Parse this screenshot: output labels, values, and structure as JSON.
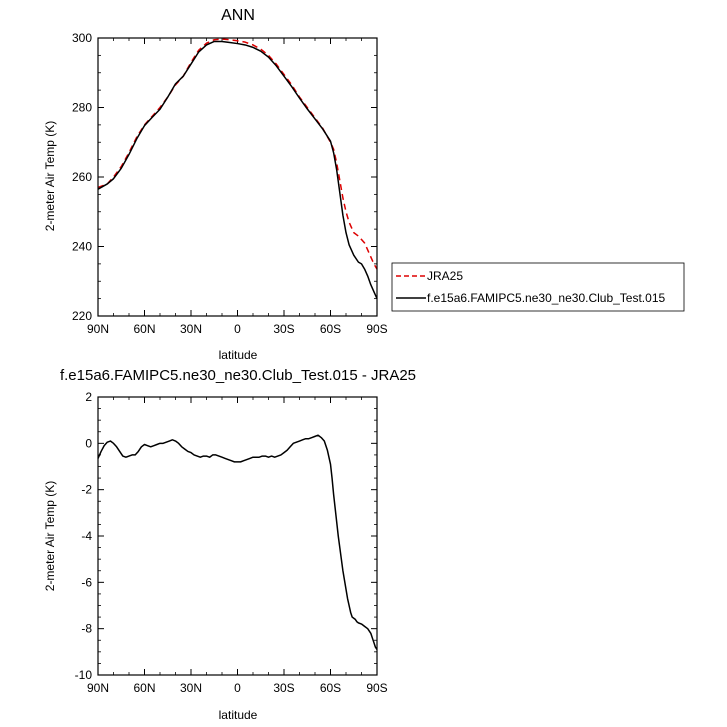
{
  "chart_data": [
    {
      "type": "line",
      "title": "ANN",
      "xlabel": "latitude",
      "ylabel": "2-meter Air Temp (K)",
      "xlim": [
        90,
        -90
      ],
      "ylim": [
        220,
        300
      ],
      "x_ticks": [
        90,
        60,
        30,
        0,
        -30,
        -60,
        -90
      ],
      "x_tick_labels": [
        "90N",
        "60N",
        "30N",
        "0",
        "30S",
        "60S",
        "90S"
      ],
      "y_ticks": [
        220,
        240,
        260,
        280,
        300
      ],
      "y_tick_labels": [
        "220",
        "240",
        "260",
        "280",
        "300"
      ],
      "grid": false,
      "legend_position": "right",
      "series": [
        {
          "name": "JRA25",
          "color": "#dd0000",
          "dash": "dashed",
          "x": [
            90,
            84,
            80,
            75,
            70,
            65,
            60,
            55,
            50,
            45,
            40,
            35,
            30,
            25,
            20,
            15,
            10,
            5,
            0,
            -5,
            -10,
            -15,
            -20,
            -25,
            -30,
            -35,
            -40,
            -45,
            -50,
            -55,
            -60,
            -62,
            -64,
            -66,
            -68,
            -70,
            -72,
            -75,
            -78,
            -80,
            -82,
            -84,
            -86,
            -88,
            -90
          ],
          "values": [
            257.0,
            258.0,
            260.0,
            263.0,
            267.0,
            271.5,
            275.0,
            277.5,
            280.0,
            283.0,
            286.5,
            289.0,
            293.0,
            296.5,
            298.5,
            299.5,
            299.7,
            299.5,
            299.2,
            298.8,
            298.0,
            296.8,
            295.0,
            292.5,
            289.5,
            286.5,
            283.0,
            280.0,
            277.0,
            274.0,
            270.0,
            268.0,
            264.0,
            259.0,
            254.0,
            250.0,
            247.0,
            244.0,
            243.0,
            242.0,
            241.0,
            239.0,
            237.0,
            235.0,
            233.5
          ]
        },
        {
          "name": "f.e15a6.FAMIPC5.ne30_ne30.Club_Test.015",
          "color": "#000000",
          "dash": "solid",
          "x": [
            90,
            84,
            80,
            75,
            70,
            65,
            60,
            55,
            50,
            45,
            40,
            35,
            30,
            25,
            20,
            15,
            10,
            5,
            0,
            -5,
            -10,
            -15,
            -20,
            -25,
            -30,
            -35,
            -40,
            -45,
            -50,
            -55,
            -60,
            -62,
            -64,
            -66,
            -68,
            -70,
            -72,
            -75,
            -78,
            -80,
            -82,
            -84,
            -86,
            -88,
            -90
          ],
          "values": [
            256.5,
            258.0,
            259.5,
            262.5,
            266.5,
            271.0,
            274.8,
            277.2,
            279.5,
            283.0,
            286.8,
            289.0,
            292.5,
            296.0,
            298.0,
            299.0,
            299.0,
            298.7,
            298.4,
            298.0,
            297.3,
            296.2,
            294.5,
            292.0,
            289.0,
            286.0,
            282.7,
            279.6,
            276.7,
            273.8,
            270.3,
            267.0,
            262.0,
            255.5,
            249.0,
            244.0,
            240.5,
            237.5,
            235.5,
            235.0,
            233.5,
            231.5,
            229.0,
            227.0,
            225.0
          ]
        }
      ]
    },
    {
      "type": "line",
      "title": "f.e15a6.FAMIPC5.ne30_ne30.Club_Test.015 - JRA25",
      "xlabel": "latitude",
      "ylabel": "2-meter Air Temp (K)",
      "xlim": [
        90,
        -90
      ],
      "ylim": [
        -10,
        2
      ],
      "x_ticks": [
        90,
        60,
        30,
        0,
        -30,
        -60,
        -90
      ],
      "x_tick_labels": [
        "90N",
        "60N",
        "30N",
        "0",
        "30S",
        "60S",
        "90S"
      ],
      "y_ticks": [
        2,
        0,
        -2,
        -4,
        -6,
        -8,
        -10
      ],
      "y_tick_labels": [
        "2",
        "0",
        "-2",
        "-4",
        "-6",
        "-8",
        "-10"
      ],
      "grid": false,
      "series": [
        {
          "color": "#000000",
          "dash": "solid",
          "x": [
            90,
            88,
            86,
            84,
            82,
            80,
            78,
            76,
            74,
            72,
            70,
            68,
            66,
            64,
            62,
            60,
            58,
            56,
            54,
            52,
            50,
            48,
            46,
            44,
            42,
            40,
            38,
            36,
            34,
            32,
            30,
            28,
            26,
            24,
            22,
            20,
            18,
            16,
            14,
            12,
            10,
            8,
            6,
            4,
            2,
            0,
            -2,
            -4,
            -6,
            -8,
            -10,
            -12,
            -14,
            -16,
            -18,
            -20,
            -22,
            -24,
            -26,
            -28,
            -30,
            -32,
            -34,
            -36,
            -38,
            -40,
            -42,
            -44,
            -46,
            -48,
            -50,
            -52,
            -54,
            -56,
            -58,
            -60,
            -61,
            -62,
            -63,
            -64,
            -65,
            -66,
            -67,
            -68,
            -69,
            -70,
            -71,
            -72,
            -73,
            -74,
            -75,
            -76,
            -77,
            -78,
            -80,
            -82,
            -84,
            -86,
            -87,
            -88,
            -89,
            -90
          ],
          "values": [
            -0.65,
            -0.35,
            -0.1,
            0.05,
            0.1,
            0.0,
            -0.15,
            -0.35,
            -0.55,
            -0.6,
            -0.55,
            -0.5,
            -0.5,
            -0.35,
            -0.15,
            -0.05,
            -0.1,
            -0.15,
            -0.1,
            -0.05,
            0.0,
            0.0,
            0.05,
            0.1,
            0.15,
            0.1,
            0.0,
            -0.15,
            -0.25,
            -0.35,
            -0.4,
            -0.5,
            -0.55,
            -0.6,
            -0.55,
            -0.55,
            -0.6,
            -0.5,
            -0.5,
            -0.55,
            -0.6,
            -0.65,
            -0.7,
            -0.75,
            -0.8,
            -0.8,
            -0.8,
            -0.75,
            -0.7,
            -0.65,
            -0.6,
            -0.6,
            -0.6,
            -0.55,
            -0.55,
            -0.6,
            -0.55,
            -0.6,
            -0.55,
            -0.5,
            -0.4,
            -0.3,
            -0.15,
            0.0,
            0.05,
            0.1,
            0.15,
            0.2,
            0.2,
            0.25,
            0.3,
            0.35,
            0.25,
            0.1,
            -0.3,
            -0.9,
            -1.5,
            -2.2,
            -2.8,
            -3.4,
            -4.0,
            -4.5,
            -5.0,
            -5.5,
            -5.9,
            -6.3,
            -6.7,
            -7.0,
            -7.3,
            -7.5,
            -7.55,
            -7.6,
            -7.7,
            -7.75,
            -7.8,
            -7.9,
            -8.0,
            -8.2,
            -8.4,
            -8.6,
            -8.8,
            -8.9
          ]
        }
      ]
    }
  ]
}
